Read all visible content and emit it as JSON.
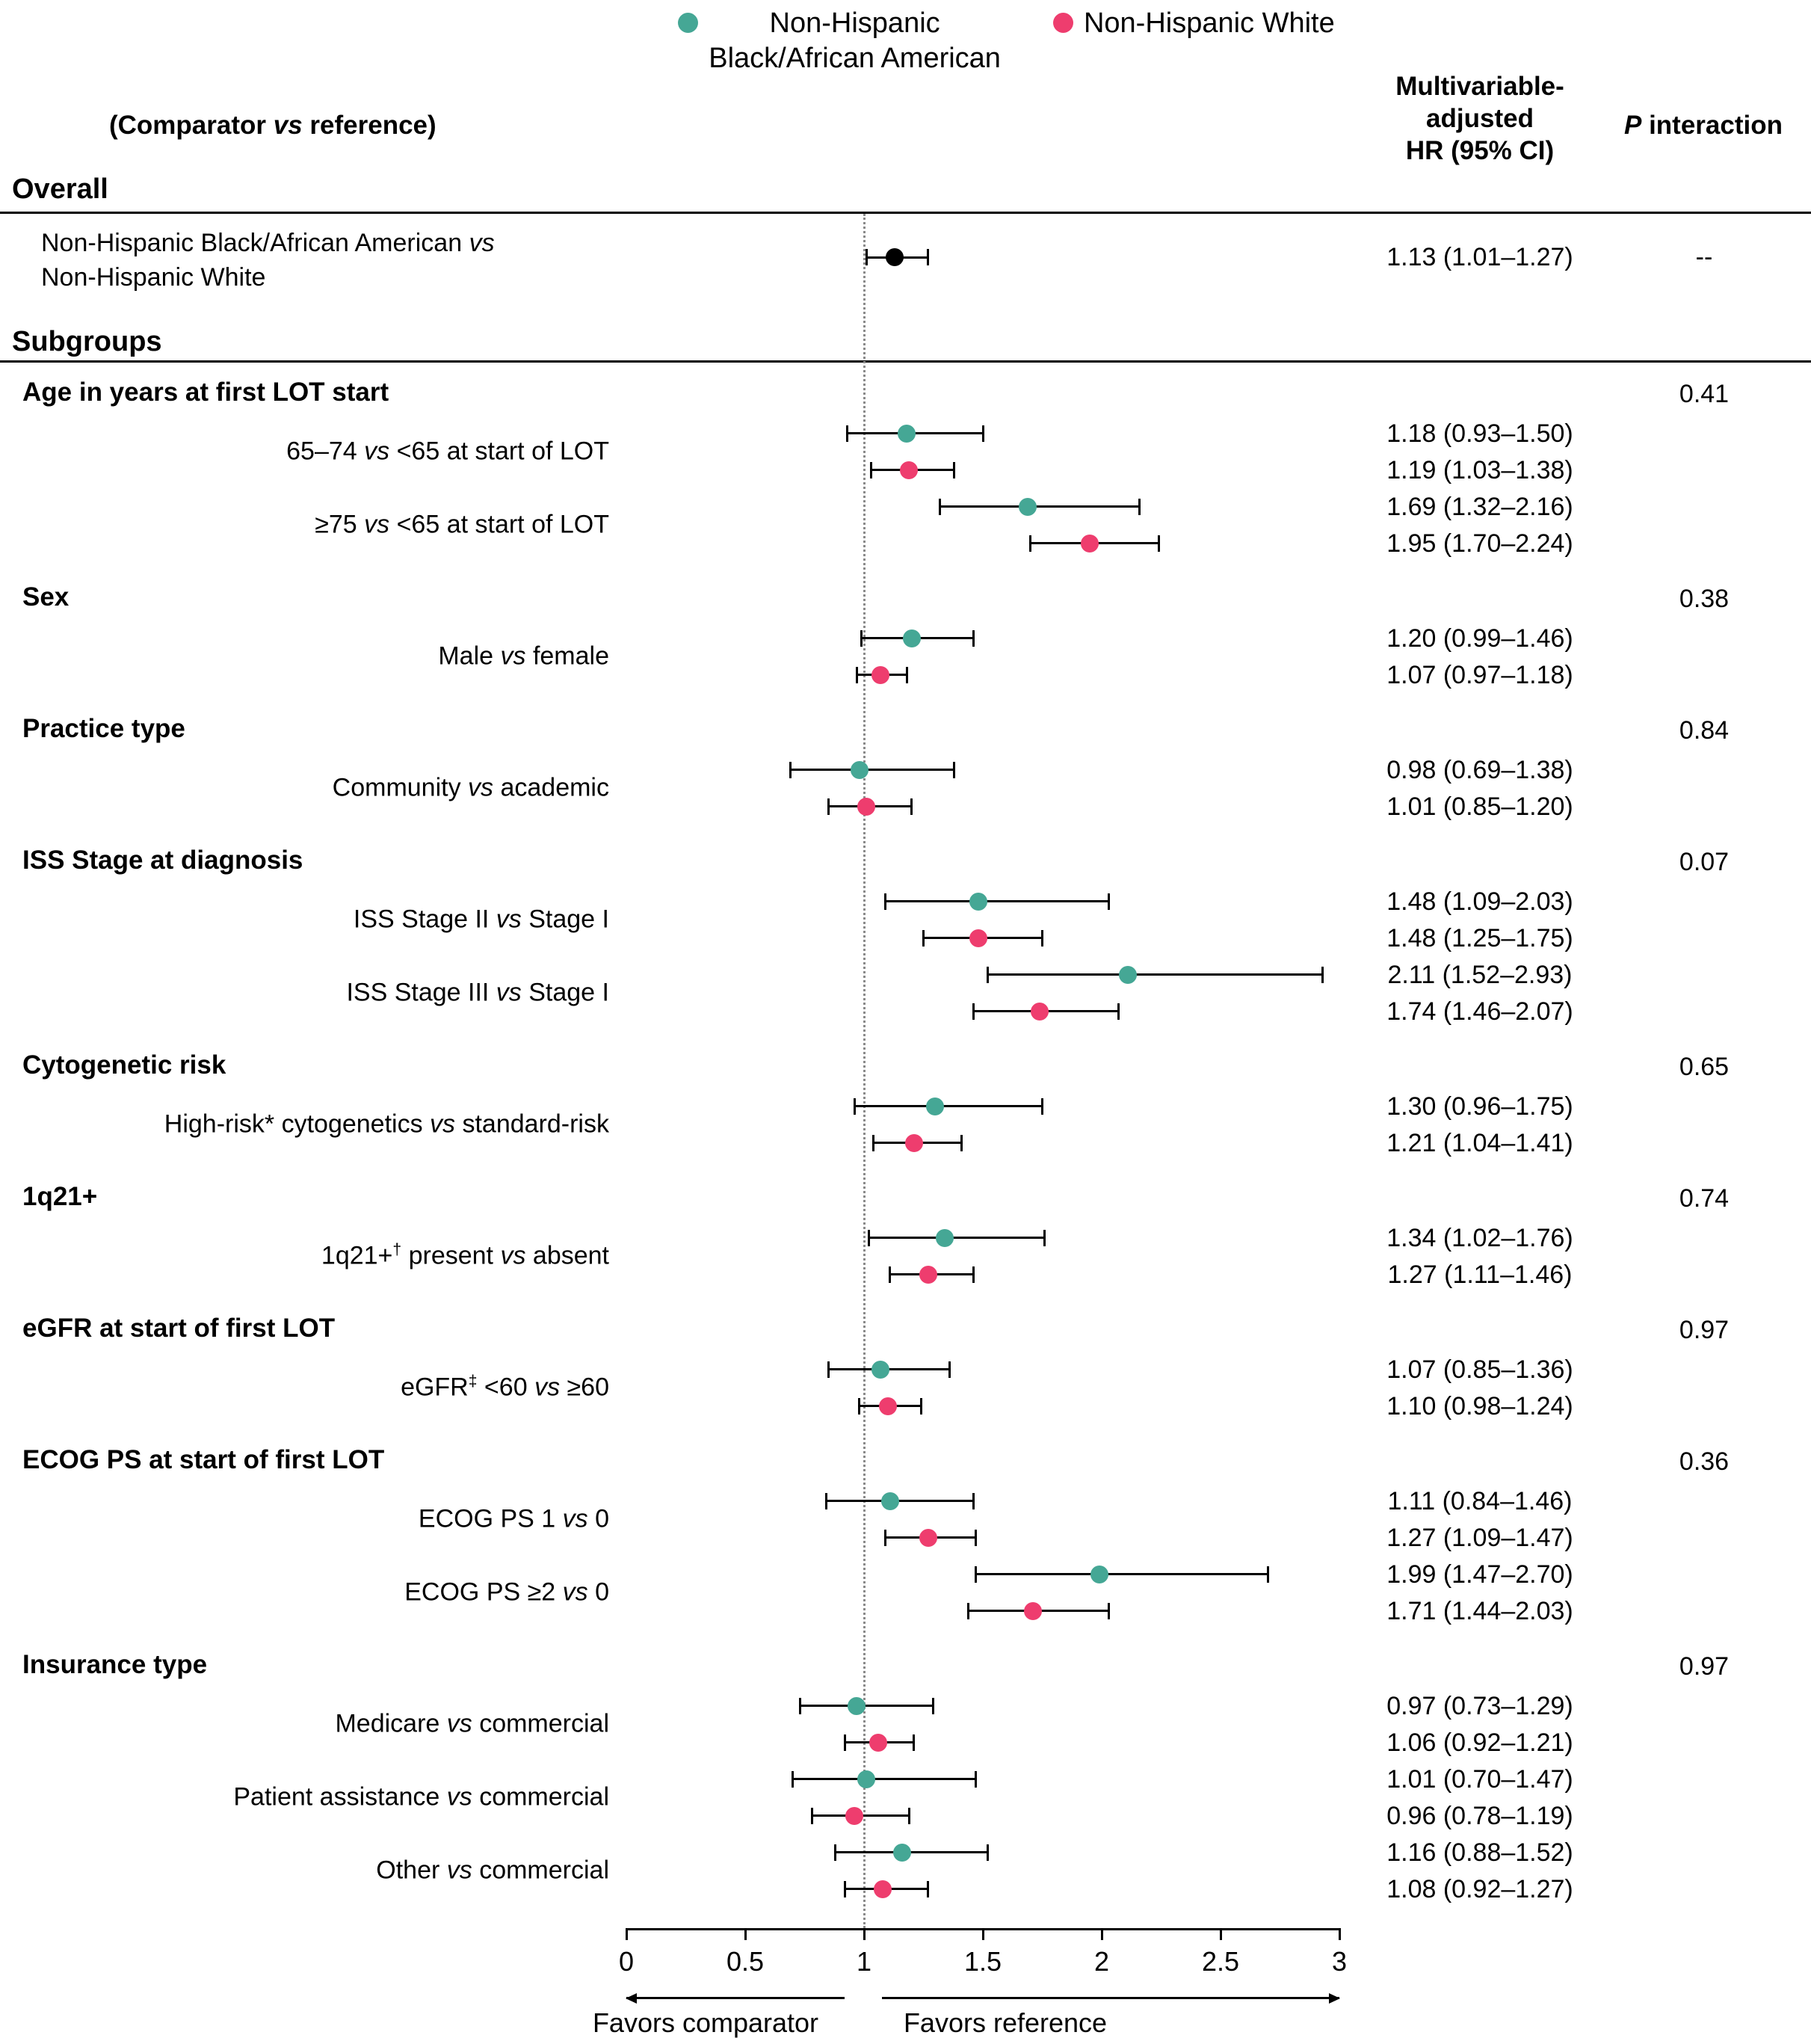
{
  "legend": {
    "items": [
      {
        "label": "Non-Hispanic Black/African American",
        "label_lines": [
          "Non-Hispanic",
          "Black/African American"
        ],
        "color": "#45a795"
      },
      {
        "label": "Non-Hispanic White",
        "label_lines": [
          "Non-Hispanic White"
        ],
        "color": "#ee3d6e"
      }
    ]
  },
  "columns": {
    "left_header": "(Comparator vs reference)",
    "hr_header": "Multivariable-adjusted HR (95% CI)",
    "hr_header_lines": [
      "Multivariable-",
      "adjusted",
      "HR (95% CI)"
    ],
    "p_header": "P interaction"
  },
  "sections": {
    "overall_label": "Overall",
    "subgroups_label": "Subgroups"
  },
  "chart_data": {
    "type": "forest",
    "axis": {
      "min": 0,
      "max": 3,
      "ticks": [
        "0",
        "0.5",
        "1",
        "1.5",
        "2",
        "2.5",
        "3"
      ],
      "tick_values": [
        0,
        0.5,
        1,
        1.5,
        2,
        2.5,
        3
      ],
      "reference_line": 1
    },
    "series": [
      {
        "name": "Non-Hispanic Black/African American",
        "color": "#45a795"
      },
      {
        "name": "Non-Hispanic White",
        "color": "#ee3d6e"
      }
    ],
    "overall": {
      "label_lines": [
        "Non-Hispanic Black/African American vs",
        "Non-Hispanic White"
      ],
      "est": 1.13,
      "lo": 1.01,
      "hi": 1.27,
      "hr_text": "1.13 (1.01–1.27)",
      "p_text": "--",
      "color": "#000000"
    },
    "groups": [
      {
        "header": "Age in years at first LOT start",
        "p": "0.41",
        "comparisons": [
          {
            "label": "65–74 vs <65 at start of LOT",
            "points": [
              {
                "series": 0,
                "est": 1.18,
                "lo": 0.93,
                "hi": 1.5,
                "hr_text": "1.18 (0.93–1.50)"
              },
              {
                "series": 1,
                "est": 1.19,
                "lo": 1.03,
                "hi": 1.38,
                "hr_text": "1.19 (1.03–1.38)"
              }
            ]
          },
          {
            "label": "≥75 vs <65 at start of LOT",
            "points": [
              {
                "series": 0,
                "est": 1.69,
                "lo": 1.32,
                "hi": 2.16,
                "hr_text": "1.69 (1.32–2.16)"
              },
              {
                "series": 1,
                "est": 1.95,
                "lo": 1.7,
                "hi": 2.24,
                "hr_text": "1.95 (1.70–2.24)"
              }
            ]
          }
        ]
      },
      {
        "header": "Sex",
        "p": "0.38",
        "comparisons": [
          {
            "label": "Male vs female",
            "points": [
              {
                "series": 0,
                "est": 1.2,
                "lo": 0.99,
                "hi": 1.46,
                "hr_text": "1.20 (0.99–1.46)"
              },
              {
                "series": 1,
                "est": 1.07,
                "lo": 0.97,
                "hi": 1.18,
                "hr_text": "1.07 (0.97–1.18)"
              }
            ]
          }
        ]
      },
      {
        "header": "Practice type",
        "p": "0.84",
        "comparisons": [
          {
            "label": "Community vs academic",
            "points": [
              {
                "series": 0,
                "est": 0.98,
                "lo": 0.69,
                "hi": 1.38,
                "hr_text": "0.98 (0.69–1.38)"
              },
              {
                "series": 1,
                "est": 1.01,
                "lo": 0.85,
                "hi": 1.2,
                "hr_text": "1.01 (0.85–1.20)"
              }
            ]
          }
        ]
      },
      {
        "header": "ISS Stage at diagnosis",
        "p": "0.07",
        "comparisons": [
          {
            "label": "ISS Stage II vs Stage I",
            "points": [
              {
                "series": 0,
                "est": 1.48,
                "lo": 1.09,
                "hi": 2.03,
                "hr_text": "1.48 (1.09–2.03)"
              },
              {
                "series": 1,
                "est": 1.48,
                "lo": 1.25,
                "hi": 1.75,
                "hr_text": "1.48 (1.25–1.75)"
              }
            ]
          },
          {
            "label": "ISS Stage III vs Stage I",
            "points": [
              {
                "series": 0,
                "est": 2.11,
                "lo": 1.52,
                "hi": 2.93,
                "hr_text": "2.11 (1.52–2.93)"
              },
              {
                "series": 1,
                "est": 1.74,
                "lo": 1.46,
                "hi": 2.07,
                "hr_text": "1.74 (1.46–2.07)"
              }
            ]
          }
        ]
      },
      {
        "header": "Cytogenetic risk",
        "p": "0.65",
        "comparisons": [
          {
            "label": "High-risk* cytogenetics vs standard-risk",
            "points": [
              {
                "series": 0,
                "est": 1.3,
                "lo": 0.96,
                "hi": 1.75,
                "hr_text": "1.30 (0.96–1.75)"
              },
              {
                "series": 1,
                "est": 1.21,
                "lo": 1.04,
                "hi": 1.41,
                "hr_text": "1.21 (1.04–1.41)"
              }
            ]
          }
        ]
      },
      {
        "header": "1q21+",
        "p": "0.74",
        "comparisons": [
          {
            "label": "1q21+† present vs absent",
            "points": [
              {
                "series": 0,
                "est": 1.34,
                "lo": 1.02,
                "hi": 1.76,
                "hr_text": "1.34 (1.02–1.76)"
              },
              {
                "series": 1,
                "est": 1.27,
                "lo": 1.11,
                "hi": 1.46,
                "hr_text": "1.27 (1.11–1.46)"
              }
            ]
          }
        ]
      },
      {
        "header": "eGFR at start of first LOT",
        "p": "0.97",
        "comparisons": [
          {
            "label": "eGFR‡ <60 vs ≥60",
            "points": [
              {
                "series": 0,
                "est": 1.07,
                "lo": 0.85,
                "hi": 1.36,
                "hr_text": "1.07 (0.85–1.36)"
              },
              {
                "series": 1,
                "est": 1.1,
                "lo": 0.98,
                "hi": 1.24,
                "hr_text": "1.10 (0.98–1.24)"
              }
            ]
          }
        ]
      },
      {
        "header": "ECOG PS at start of first LOT",
        "p": "0.36",
        "comparisons": [
          {
            "label": "ECOG PS 1 vs 0",
            "points": [
              {
                "series": 0,
                "est": 1.11,
                "lo": 0.84,
                "hi": 1.46,
                "hr_text": "1.11 (0.84–1.46)"
              },
              {
                "series": 1,
                "est": 1.27,
                "lo": 1.09,
                "hi": 1.47,
                "hr_text": "1.27 (1.09–1.47)"
              }
            ]
          },
          {
            "label": "ECOG PS ≥2 vs 0",
            "points": [
              {
                "series": 0,
                "est": 1.99,
                "lo": 1.47,
                "hi": 2.7,
                "hr_text": "1.99 (1.47–2.70)"
              },
              {
                "series": 1,
                "est": 1.71,
                "lo": 1.44,
                "hi": 2.03,
                "hr_text": "1.71 (1.44–2.03)"
              }
            ]
          }
        ]
      },
      {
        "header": "Insurance type",
        "p": "0.97",
        "comparisons": [
          {
            "label": "Medicare vs commercial",
            "points": [
              {
                "series": 0,
                "est": 0.97,
                "lo": 0.73,
                "hi": 1.29,
                "hr_text": "0.97 (0.73–1.29)"
              },
              {
                "series": 1,
                "est": 1.06,
                "lo": 0.92,
                "hi": 1.21,
                "hr_text": "1.06 (0.92–1.21)"
              }
            ]
          },
          {
            "label": "Patient assistance vs commercial",
            "points": [
              {
                "series": 0,
                "est": 1.01,
                "lo": 0.7,
                "hi": 1.47,
                "hr_text": "1.01 (0.70–1.47)"
              },
              {
                "series": 1,
                "est": 0.96,
                "lo": 0.78,
                "hi": 1.19,
                "hr_text": "0.96 (0.78–1.19)"
              }
            ]
          },
          {
            "label": "Other vs commercial",
            "points": [
              {
                "series": 0,
                "est": 1.16,
                "lo": 0.88,
                "hi": 1.52,
                "hr_text": "1.16 (0.88–1.52)"
              },
              {
                "series": 1,
                "est": 1.08,
                "lo": 0.92,
                "hi": 1.27,
                "hr_text": "1.08 (0.92–1.27)"
              }
            ]
          }
        ]
      }
    ],
    "footer": {
      "favors_left": "Favors comparator",
      "favors_right": "Favors reference"
    }
  }
}
